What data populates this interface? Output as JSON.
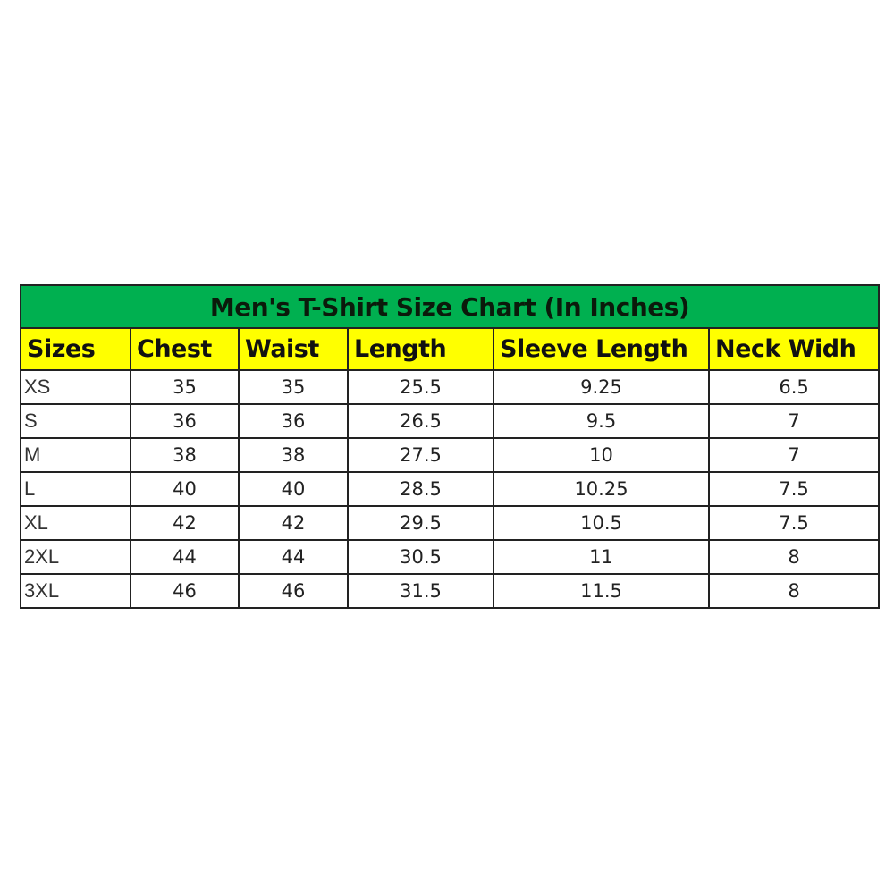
{
  "title": "Men's T-Shirt Size Chart (In Inches)",
  "colors": {
    "title_bg": "#00b050",
    "header_bg": "#ffff00"
  },
  "headers": [
    "Sizes",
    "Chest",
    "Waist",
    "Length",
    "Sleeve Length",
    "Neck Widh"
  ],
  "rows": [
    [
      "XS",
      "35",
      "35",
      "25.5",
      "9.25",
      "6.5"
    ],
    [
      "S",
      "36",
      "36",
      "26.5",
      "9.5",
      "7"
    ],
    [
      "M",
      "38",
      "38",
      "27.5",
      "10",
      "7"
    ],
    [
      "L",
      "40",
      "40",
      "28.5",
      "10.25",
      "7.5"
    ],
    [
      "XL",
      "42",
      "42",
      "29.5",
      "10.5",
      "7.5"
    ],
    [
      "2XL",
      "44",
      "44",
      "30.5",
      "11",
      "8"
    ],
    [
      "3XL",
      "46",
      "46",
      "31.5",
      "11.5",
      "8"
    ]
  ]
}
